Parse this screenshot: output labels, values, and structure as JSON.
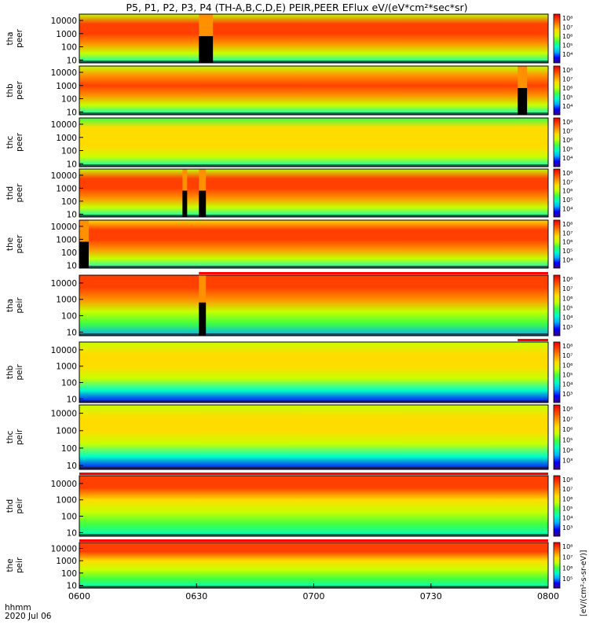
{
  "title": "P5, P1, P2, P3, P4 (TH-A,B,C,D,E) PEIR,PEER EFlux eV/(eV*cm²*sec*sr)",
  "xaxis": {
    "ticks": [
      "0600",
      "0630",
      "0700",
      "0730",
      "0800"
    ],
    "corner_label": "hhmm",
    "date_label": "2020 Jul 06"
  },
  "colorbar": {
    "side_label": "[eV/(cm²-s-sr-eV)]",
    "tick_labels": [
      "10⁸",
      "10⁷",
      "10⁶",
      "10⁵",
      "10⁴",
      "10³"
    ]
  },
  "colors": {
    "spectrum": [
      "#3c0080",
      "#0000ff",
      "#00b0ff",
      "#00ffc8",
      "#40ff40",
      "#c8ff00",
      "#ffdc00",
      "#ff9000",
      "#ff4000",
      "#e80000"
    ],
    "flag_red": "#ff0000",
    "fill_black": "#000000"
  },
  "chart_data": {
    "type": "heatmap",
    "x_units": "hhmm",
    "x_range": [
      "0600",
      "0800"
    ],
    "y_scale": "log",
    "y_ticks": [
      "10",
      "100",
      "1000",
      "10000"
    ],
    "panels": [
      {
        "id": "tha-peer",
        "ylabel": [
          "tha",
          "peer"
        ],
        "profile": [
          0.3,
          0.55,
          0.8,
          0.88,
          0.85,
          0.6
        ],
        "gaps": [
          [
            0.255,
            0.285
          ]
        ],
        "flag": null
      },
      {
        "id": "thb-peer",
        "ylabel": [
          "thb",
          "peer"
        ],
        "profile": [
          0.3,
          0.55,
          0.78,
          0.85,
          0.8,
          0.6
        ],
        "gaps": [
          [
            0.935,
            0.955
          ]
        ],
        "flag": null
      },
      {
        "id": "thc-peer",
        "ylabel": [
          "thc",
          "peer"
        ],
        "profile": [
          0.35,
          0.55,
          0.7,
          0.72,
          0.62,
          0.4
        ],
        "gaps": [],
        "flag": null
      },
      {
        "id": "thd-peer",
        "ylabel": [
          "thd",
          "peer"
        ],
        "profile": [
          0.3,
          0.55,
          0.8,
          0.88,
          0.85,
          0.6
        ],
        "gaps": [
          [
            0.22,
            0.23
          ],
          [
            0.255,
            0.27
          ]
        ],
        "flag": null
      },
      {
        "id": "the-peer",
        "ylabel": [
          "the",
          "peer"
        ],
        "profile": [
          0.3,
          0.55,
          0.8,
          0.88,
          0.86,
          0.62
        ],
        "gaps": [
          [
            0.0,
            0.02
          ]
        ],
        "flag": null
      },
      {
        "id": "tha-peir",
        "ylabel": [
          "tha",
          "peir"
        ],
        "profile": [
          0.25,
          0.45,
          0.6,
          0.8,
          0.88,
          0.92
        ],
        "gaps": [
          [
            0.255,
            0.27
          ]
        ],
        "flag": {
          "start": 0.255,
          "end": 1.0
        }
      },
      {
        "id": "thb-peir",
        "ylabel": [
          "thb",
          "peir"
        ],
        "profile": [
          0.15,
          0.3,
          0.5,
          0.65,
          0.72,
          0.6
        ],
        "gaps": [],
        "flag": {
          "start": 0.935,
          "end": 1.0
        }
      },
      {
        "id": "thc-peir",
        "ylabel": [
          "thc",
          "peir"
        ],
        "profile": [
          0.15,
          0.3,
          0.5,
          0.65,
          0.7,
          0.55
        ],
        "gaps": [],
        "flag": null
      },
      {
        "id": "thd-peir",
        "ylabel": [
          "thd",
          "peir"
        ],
        "profile": [
          0.3,
          0.45,
          0.55,
          0.7,
          0.85,
          0.9
        ],
        "gaps": [],
        "flag": {
          "start": 0.0,
          "end": 1.0
        }
      },
      {
        "id": "the-peir",
        "ylabel": [
          "the",
          "peir"
        ],
        "profile": [
          0.35,
          0.48,
          0.58,
          0.72,
          0.86,
          0.92
        ],
        "gaps": [],
        "flag": {
          "start": 0.0,
          "end": 1.0
        }
      }
    ]
  }
}
